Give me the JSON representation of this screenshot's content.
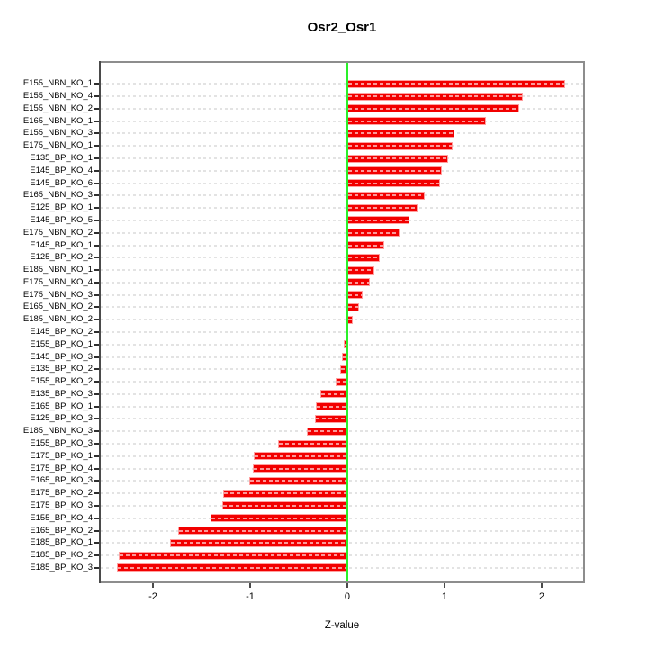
{
  "title": "Osr2_Osr1",
  "chart_data": {
    "type": "bar",
    "orientation": "horizontal",
    "title": "Osr2_Osr1",
    "xlabel": "Z-value",
    "ylabel": "",
    "xlim": [
      -2.537,
      2.426
    ],
    "x_ticks": [
      -2,
      -1,
      0,
      1,
      2
    ],
    "x_tick_labels": [
      "-2",
      "-1",
      "0",
      "1",
      "2"
    ],
    "grid": true,
    "legend": "none",
    "bar_color": "#f20000",
    "bar_edge_color": "#ffa0a0",
    "zero_line_color": "#2af02a",
    "categories": [
      "E155_NBN_KO_1",
      "E155_NBN_KO_4",
      "E155_NBN_KO_2",
      "E165_NBN_KO_1",
      "E155_NBN_KO_3",
      "E175_NBN_KO_1",
      "E135_BP_KO_1",
      "E145_BP_KO_4",
      "E145_BP_KO_6",
      "E165_NBN_KO_3",
      "E125_BP_KO_1",
      "E145_BP_KO_5",
      "E175_NBN_KO_2",
      "E145_BP_KO_1",
      "E125_BP_KO_2",
      "E185_NBN_KO_1",
      "E175_NBN_KO_4",
      "E175_NBN_KO_3",
      "E165_NBN_KO_2",
      "E185_NBN_KO_2",
      "E145_BP_KO_2",
      "E155_BP_KO_1",
      "E145_BP_KO_3",
      "E135_BP_KO_2",
      "E155_BP_KO_2",
      "E135_BP_KO_3",
      "E165_BP_KO_1",
      "E125_BP_KO_3",
      "E185_NBN_KO_3",
      "E155_BP_KO_3",
      "E175_BP_KO_1",
      "E175_BP_KO_4",
      "E165_BP_KO_3",
      "E175_BP_KO_2",
      "E175_BP_KO_3",
      "E155_BP_KO_4",
      "E165_BP_KO_2",
      "E185_BP_KO_1",
      "E185_BP_KO_2",
      "E185_BP_KO_3"
    ],
    "values": [
      2.24,
      1.81,
      1.77,
      1.43,
      1.1,
      1.08,
      1.04,
      0.97,
      0.95,
      0.8,
      0.72,
      0.64,
      0.54,
      0.38,
      0.33,
      0.28,
      0.23,
      0.16,
      0.12,
      0.06,
      0.0,
      -0.04,
      -0.06,
      -0.07,
      -0.12,
      -0.28,
      -0.32,
      -0.33,
      -0.42,
      -0.71,
      -0.96,
      -0.97,
      -1.01,
      -1.28,
      -1.29,
      -1.41,
      -1.74,
      -1.82,
      -2.35,
      -2.37
    ]
  }
}
